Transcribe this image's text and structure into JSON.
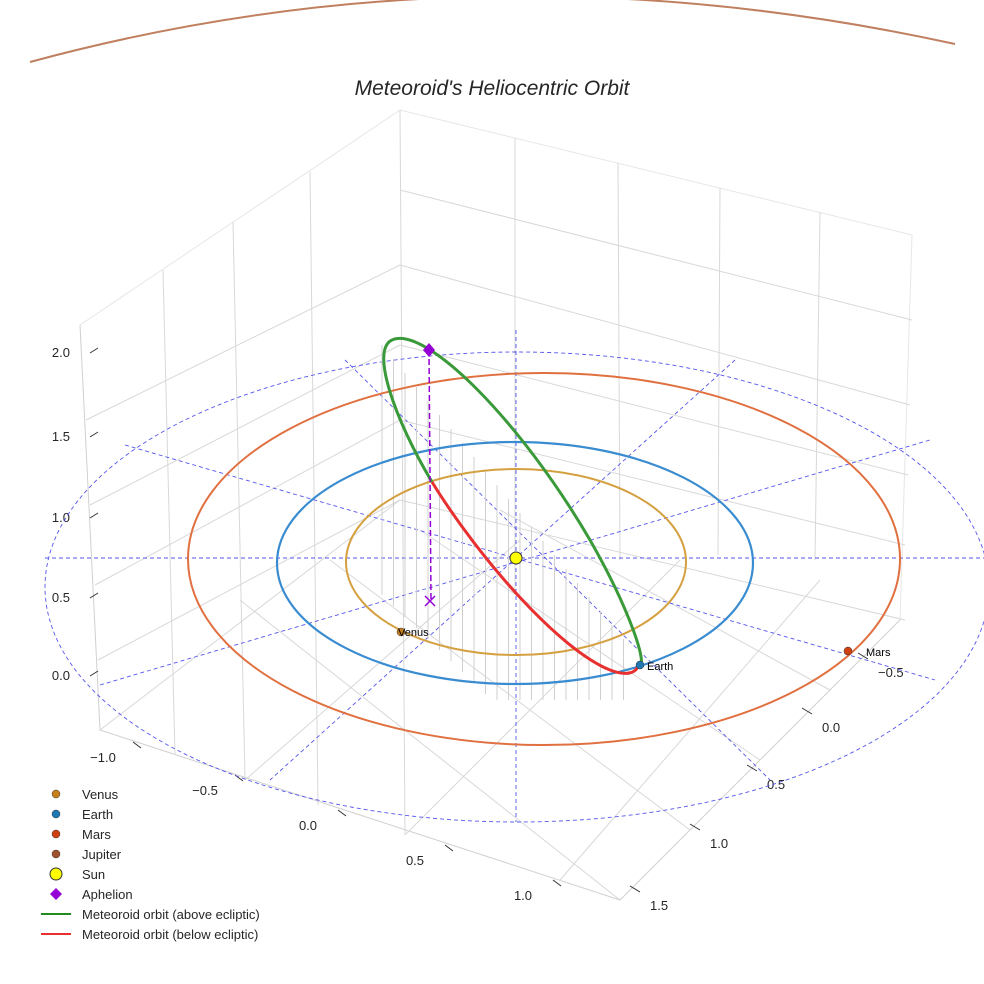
{
  "chart_data": {
    "type": "3d-line",
    "title": "Meteoroid's Heliocentric Orbit",
    "axes": {
      "x_ticks": [
        "−1.0",
        "−0.5",
        "0.0",
        "0.5",
        "1.0"
      ],
      "y_ticks": [
        "−0.5",
        "0.0",
        "0.5",
        "1.0",
        "1.5"
      ],
      "z_ticks": [
        "0.0",
        "0.5",
        "1.0",
        "1.5",
        "2.0"
      ],
      "grid": true
    },
    "planets": [
      {
        "name": "Venus",
        "orbit_radius_au": 0.72,
        "color": "#d4a040",
        "marker_color": "#c8801a",
        "label": "Venus"
      },
      {
        "name": "Earth",
        "orbit_radius_au": 1.0,
        "color": "#3a8cd0",
        "marker_color": "#1f77b4",
        "label": "Earth"
      },
      {
        "name": "Mars",
        "orbit_radius_au": 1.52,
        "color": "#e07040",
        "marker_color": "#d04010",
        "label": "Mars"
      },
      {
        "name": "Jupiter",
        "orbit_radius_au": 5.2,
        "color": "#c08060",
        "marker_color": "#a0522d"
      }
    ],
    "sun": {
      "color": "#ffff00"
    },
    "aphelion": {
      "color": "#9400d3",
      "z_au": 2.0
    },
    "meteoroid_orbit": {
      "above_color": "#3a9a3a",
      "below_color": "#e83030"
    },
    "legend": {
      "placement": "lower-left",
      "entries": [
        {
          "label": "Venus",
          "marker": "circle",
          "color": "#c8801a"
        },
        {
          "label": "Earth",
          "marker": "circle",
          "color": "#1f77b4"
        },
        {
          "label": "Mars",
          "marker": "circle",
          "color": "#d04010"
        },
        {
          "label": "Jupiter",
          "marker": "circle",
          "color": "#a0522d"
        },
        {
          "label": "Sun",
          "marker": "big-circle",
          "color": "#ffff00"
        },
        {
          "label": "Aphelion",
          "marker": "diamond",
          "color": "#9400d3"
        },
        {
          "label": "Meteoroid orbit (above ecliptic)",
          "marker": "line",
          "color": "#228b22"
        },
        {
          "label": "Meteoroid orbit (below ecliptic)",
          "marker": "line",
          "color": "#e83030"
        }
      ]
    }
  }
}
